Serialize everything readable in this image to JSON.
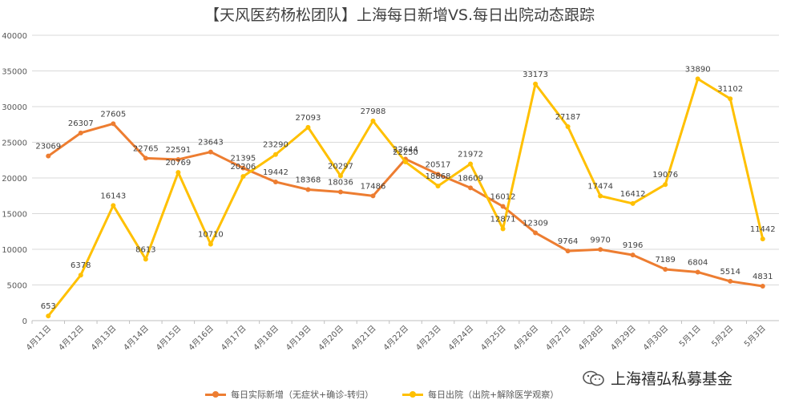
{
  "title": "【天风医药杨松团队】上海每日新增VS.每日出院动态跟踪",
  "watermark": "上海禧弘私募基金",
  "colors": {
    "new_cases": "#ED7D31",
    "discharges": "#FFC000",
    "grid": "#D9D9D9"
  },
  "chart_data": {
    "type": "line",
    "categories": [
      "4月11日",
      "4月12日",
      "4月13日",
      "4月14日",
      "4月15日",
      "4月16日",
      "4月17日",
      "4月18日",
      "4月19日",
      "4月20日",
      "4月21日",
      "4月22日",
      "4月23日",
      "4月24日",
      "4月25日",
      "4月26日",
      "4月27日",
      "4月28日",
      "4月29日",
      "4月30日",
      "5月1日",
      "5月2日",
      "5月3日"
    ],
    "y_ticks": [
      "0",
      "5000",
      "10000",
      "15000",
      "20000",
      "25000",
      "30000",
      "35000",
      "40000"
    ],
    "ylim": [
      0,
      40000
    ],
    "grid": true,
    "legend_position": "bottom",
    "series": [
      {
        "name": "每日实际新增（无症状+确诊-转归）",
        "values": [
          23069,
          26307,
          27605,
          22765,
          22591,
          23643,
          21395,
          19442,
          18368,
          18036,
          17486,
          22644,
          20517,
          18609,
          16012,
          12309,
          9764,
          9970,
          9196,
          7189,
          6804,
          5514,
          4831
        ]
      },
      {
        "name": "每日出院（出院+解除医学观察）",
        "values": [
          653,
          6378,
          16143,
          8613,
          20769,
          10710,
          20206,
          23290,
          27093,
          20297,
          27988,
          22250,
          18868,
          21972,
          12871,
          33173,
          27187,
          17474,
          16412,
          19076,
          33890,
          31102,
          11442
        ]
      }
    ]
  }
}
